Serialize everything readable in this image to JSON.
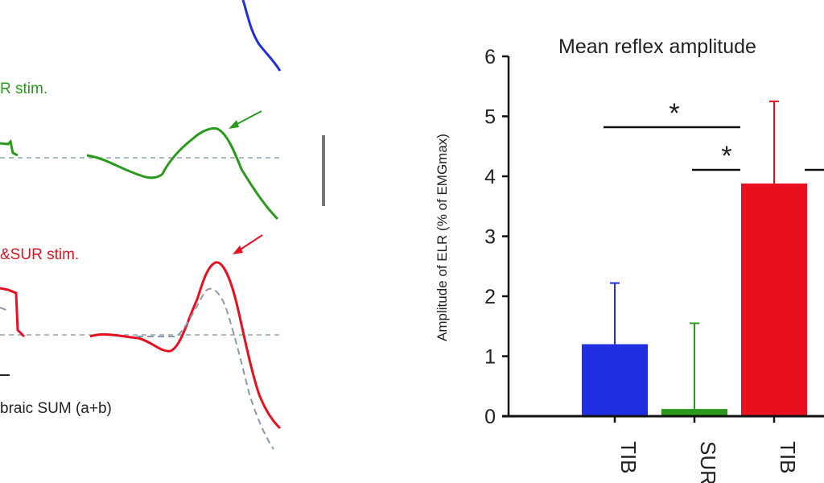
{
  "colors": {
    "tib": "#1f2fe0",
    "sur": "#2a9a1c",
    "tibsur": "#e8101e",
    "dashed": "#8fa8b6",
    "sum_dashed": "#8a9aaa",
    "axis": "#111111",
    "text": "#222222",
    "scalebar": "#777777"
  },
  "traces": {
    "sur_label": "R stim.",
    "tibsur_label": "&SUR stim.",
    "sum_label": "braic SUM (a+b)"
  },
  "chart_data": {
    "type": "bar",
    "title": "Mean reflex amplitude",
    "ylabel": "Amplitude of ELR (% of EMGmax)",
    "xlabel": "",
    "ylim": [
      0,
      6
    ],
    "yticks": [
      0,
      1,
      2,
      3,
      4,
      5,
      6
    ],
    "categories": [
      "TIB",
      "SUR",
      "TIB"
    ],
    "values": [
      1.2,
      0.12,
      3.88
    ],
    "errors": [
      1.02,
      1.43,
      1.37
    ],
    "bar_colors": [
      "#1f2fe0",
      "#2a9a1c",
      "#e8101e"
    ],
    "significance": [
      {
        "label": "*",
        "from": 0,
        "to": 2,
        "y": 4.8
      },
      {
        "label": "*",
        "from": 1,
        "to": 2,
        "y": 4.1
      },
      {
        "label": "",
        "from": 2,
        "to": 3,
        "y": 4.1
      }
    ],
    "grid": false
  }
}
